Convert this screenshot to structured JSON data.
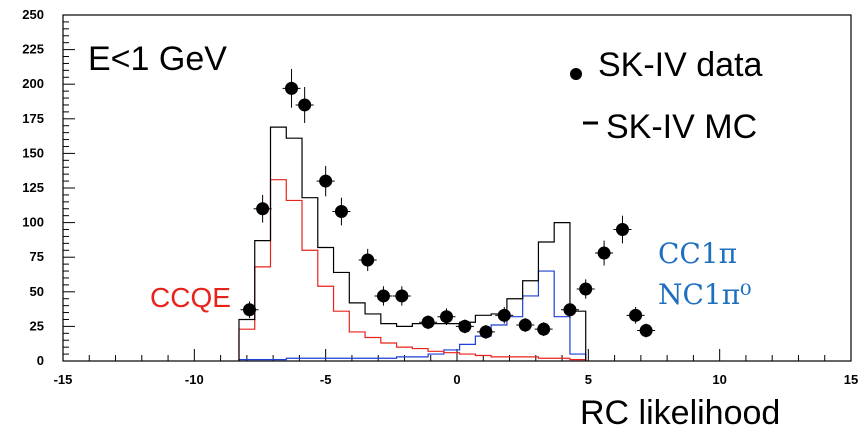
{
  "chart_data": {
    "type": "histogram",
    "title": "E<1 GeV",
    "xlabel": "RC likelihood",
    "ylabel": "",
    "xlim": [
      -15,
      15
    ],
    "ylim": [
      0,
      250
    ],
    "x_ticks": [
      "-15",
      "-10",
      "-5",
      "0",
      "5",
      "10",
      "15"
    ],
    "y_ticks": [
      "0",
      "25",
      "50",
      "75",
      "100",
      "125",
      "150",
      "175",
      "200",
      "225",
      "250"
    ],
    "legend": {
      "placement": "top-right",
      "data_label": "SK-IV data",
      "mc_label": "SK-IV MC"
    },
    "annotations": {
      "ccqe": "CCQE",
      "cc1pi": "CC1π",
      "nc1pi0": "NC1π⁰"
    },
    "colors": {
      "mc_total": "#000000",
      "ccqe": "#e8231c",
      "pion": "#1f3fd6",
      "ccqe_text": "#e8231c",
      "pion_text": "#1f6fbf"
    },
    "bin_width": 0.6,
    "bin_edges_start": -8.3,
    "series": [
      {
        "name": "SK-IV MC",
        "kind": "step",
        "values": [
          30,
          87,
          169,
          161,
          118,
          82,
          64,
          42,
          34,
          27,
          25,
          27,
          27,
          27,
          28,
          33,
          34,
          45,
          58,
          86,
          100,
          36
        ]
      },
      {
        "name": "CCQE",
        "kind": "step",
        "values": [
          23,
          68,
          131,
          116,
          80,
          54,
          36,
          21,
          17,
          13,
          10,
          9,
          7,
          6,
          5,
          4,
          3,
          3,
          3,
          2,
          2,
          1
        ]
      },
      {
        "name": "CC1π / NC1π⁰",
        "kind": "step",
        "values": [
          1,
          1,
          1,
          2,
          2,
          2,
          2,
          2,
          2,
          2,
          3,
          3,
          5,
          8,
          12,
          18,
          26,
          32,
          47,
          65,
          32,
          5
        ]
      },
      {
        "name": "SK-IV data",
        "kind": "points",
        "x": [
          -7.9,
          -7.4,
          -6.3,
          -5.8,
          -5.0,
          -4.4,
          -3.4,
          -2.8,
          -2.1,
          -1.1,
          -0.4,
          0.3,
          1.1,
          1.8,
          2.6,
          3.3,
          4.3,
          4.9,
          5.6,
          6.3,
          6.8,
          7.2
        ],
        "y": [
          37,
          110,
          197,
          185,
          130,
          108,
          73,
          47,
          47,
          28,
          32,
          25,
          21,
          33,
          26,
          23,
          37,
          52,
          78,
          95,
          33,
          22
        ],
        "yerr": [
          6,
          10,
          14,
          13,
          11,
          10,
          8,
          7,
          7,
          5,
          6,
          5,
          5,
          6,
          5,
          5,
          6,
          7,
          9,
          10,
          6,
          5
        ]
      }
    ]
  }
}
